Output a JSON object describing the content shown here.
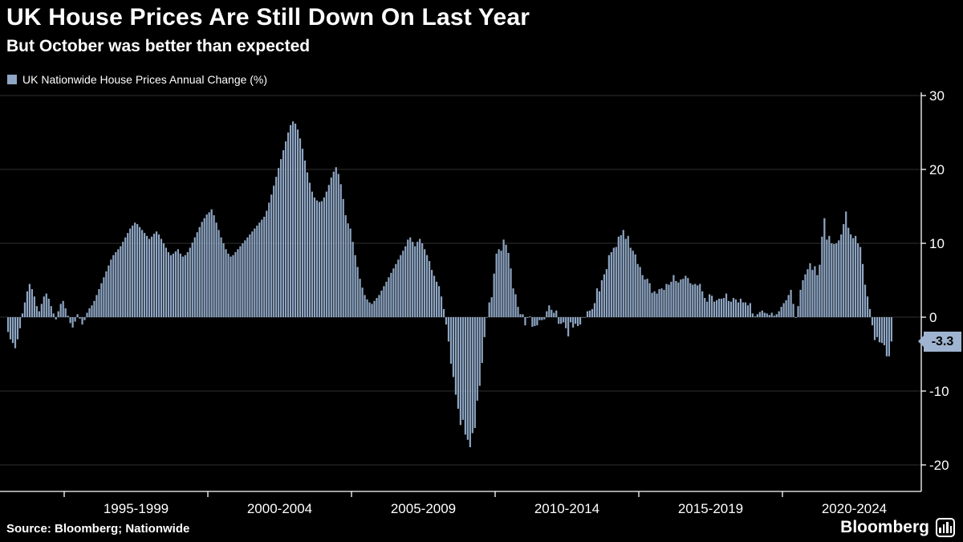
{
  "header": {
    "title": "UK House Prices Are Still Down On Last Year",
    "subtitle": "But October was better than expected"
  },
  "legend": {
    "label": "UK Nationwide House Prices Annual Change (%)"
  },
  "footer": {
    "source": "Source: Bloomberg; Nationwide",
    "brand": "Bloomberg"
  },
  "colors": {
    "background": "#000000",
    "bar": "#8ea6c4",
    "badge_bg": "#9fb4d0",
    "badge_text": "#000000",
    "grid": "#2f2f2f",
    "axis": "#ffffff",
    "text": "#ffffff"
  },
  "chart_data": {
    "type": "bar",
    "title": "UK House Prices Are Still Down On Last Year",
    "subtitle": "But October was better than expected",
    "series_name": "UK Nationwide House Prices Annual Change (%)",
    "frequency": "monthly",
    "x_start": "1993-01",
    "x_end": "2023-10",
    "ylim": [
      -24,
      31
    ],
    "y_ticks": [
      30,
      20,
      10,
      0,
      -10,
      -20
    ],
    "grid": true,
    "axis_side": "right",
    "legend_position": "top-left",
    "x_labels": [
      "1995-1999",
      "2000-2004",
      "2005-2009",
      "2010-2014",
      "2015-2019",
      "2020-2024"
    ],
    "last_value_label": "-3.3",
    "values": [
      -2.0,
      -3.0,
      -3.5,
      -4.2,
      -3.0,
      -1.5,
      0.5,
      2.0,
      3.5,
      4.5,
      3.8,
      2.8,
      1.5,
      0.8,
      1.8,
      2.8,
      3.2,
      2.5,
      1.5,
      0.5,
      -0.3,
      0.8,
      1.8,
      2.2,
      1.2,
      0.2,
      -0.8,
      -1.4,
      -0.6,
      0.4,
      -0.2,
      -1.0,
      -0.4,
      0.6,
      1.2,
      1.6,
      2.2,
      3.0,
      3.8,
      4.6,
      5.4,
      6.2,
      7.0,
      7.8,
      8.4,
      8.8,
      9.2,
      9.6,
      10.2,
      10.8,
      11.4,
      12.0,
      12.4,
      12.8,
      12.6,
      12.2,
      11.8,
      11.4,
      11.0,
      10.6,
      10.9,
      11.3,
      11.6,
      11.2,
      10.6,
      10.0,
      9.4,
      8.8,
      8.4,
      8.6,
      8.9,
      9.2,
      8.6,
      8.2,
      8.4,
      8.8,
      9.4,
      10.1,
      10.8,
      11.5,
      12.2,
      12.9,
      13.4,
      13.9,
      14.2,
      14.6,
      13.8,
      12.8,
      11.8,
      10.8,
      10.0,
      9.2,
      8.6,
      8.2,
      8.4,
      8.8,
      9.2,
      9.6,
      10.0,
      10.4,
      10.8,
      11.2,
      11.6,
      12.0,
      12.4,
      12.8,
      13.2,
      13.6,
      14.4,
      15.5,
      16.6,
      17.8,
      19.0,
      20.2,
      21.4,
      22.6,
      23.8,
      25.0,
      26.0,
      26.5,
      26.2,
      25.4,
      24.2,
      22.8,
      21.2,
      19.6,
      18.2,
      17.0,
      16.2,
      15.8,
      15.6,
      15.7,
      16.2,
      17.0,
      17.9,
      18.9,
      19.7,
      20.3,
      19.4,
      18.0,
      16.0,
      13.8,
      12.7,
      12.0,
      10.2,
      8.4,
      6.8,
      5.2,
      4.0,
      3.0,
      2.4,
      2.0,
      1.8,
      2.2,
      2.6,
      3.0,
      3.6,
      4.2,
      4.8,
      5.4,
      6.0,
      6.6,
      7.2,
      7.8,
      8.4,
      9.0,
      9.6,
      10.5,
      10.8,
      10.2,
      9.6,
      10.2,
      10.6,
      10.0,
      9.2,
      8.4,
      7.6,
      6.4,
      5.6,
      4.8,
      4.2,
      2.8,
      1.1,
      -1.0,
      -3.3,
      -6.3,
      -8.1,
      -10.5,
      -12.4,
      -14.6,
      -13.9,
      -15.9,
      -16.6,
      -17.6,
      -15.7,
      -15.0,
      -11.3,
      -9.3,
      -6.2,
      -2.7,
      0.0,
      2.0,
      2.7,
      5.9,
      8.6,
      9.2,
      9.0,
      10.5,
      9.8,
      8.7,
      6.6,
      3.9,
      3.1,
      1.4,
      0.4,
      0.4,
      -1.1,
      -0.1,
      0.1,
      -1.3,
      -1.2,
      -1.1,
      -0.4,
      -0.4,
      -0.3,
      0.8,
      1.6,
      1.0,
      0.6,
      0.9,
      -0.9,
      -0.9,
      -0.7,
      -1.5,
      -2.6,
      -0.7,
      -1.4,
      -0.9,
      -1.2,
      -1.0,
      0.0,
      0.0,
      0.8,
      0.9,
      1.1,
      1.9,
      3.9,
      3.5,
      5.0,
      5.8,
      6.5,
      8.4,
      8.8,
      9.4,
      9.5,
      10.9,
      11.1,
      11.8,
      10.6,
      11.0,
      9.4,
      9.0,
      8.5,
      7.2,
      6.8,
      5.7,
      5.1,
      5.2,
      4.6,
      3.3,
      3.5,
      3.2,
      3.8,
      3.9,
      3.7,
      4.5,
      4.4,
      4.8,
      5.7,
      4.9,
      4.7,
      5.1,
      5.2,
      5.6,
      5.3,
      4.6,
      4.4,
      4.5,
      4.3,
      4.5,
      3.5,
      2.6,
      2.1,
      3.1,
      2.9,
      2.1,
      2.3,
      2.5,
      2.5,
      2.6,
      3.2,
      2.2,
      2.1,
      2.6,
      2.4,
      2.0,
      2.5,
      2.0,
      2.0,
      1.6,
      1.9,
      0.5,
      0.1,
      0.4,
      0.7,
      0.9,
      0.6,
      0.5,
      0.3,
      0.6,
      0.2,
      0.4,
      0.8,
      1.4,
      1.9,
      2.3,
      3.0,
      3.7,
      1.8,
      -0.1,
      1.5,
      3.7,
      5.0,
      5.8,
      6.5,
      7.3,
      6.4,
      6.9,
      5.7,
      7.1,
      10.9,
      13.4,
      10.5,
      11.0,
      10.0,
      9.9,
      10.0,
      10.4,
      11.2,
      12.6,
      14.3,
      12.1,
      11.2,
      10.7,
      11.0,
      10.0,
      9.5,
      7.2,
      4.4,
      2.8,
      1.1,
      -1.1,
      -3.1,
      -2.7,
      -3.4,
      -3.5,
      -3.8,
      -5.3,
      -5.3,
      -3.3
    ]
  }
}
